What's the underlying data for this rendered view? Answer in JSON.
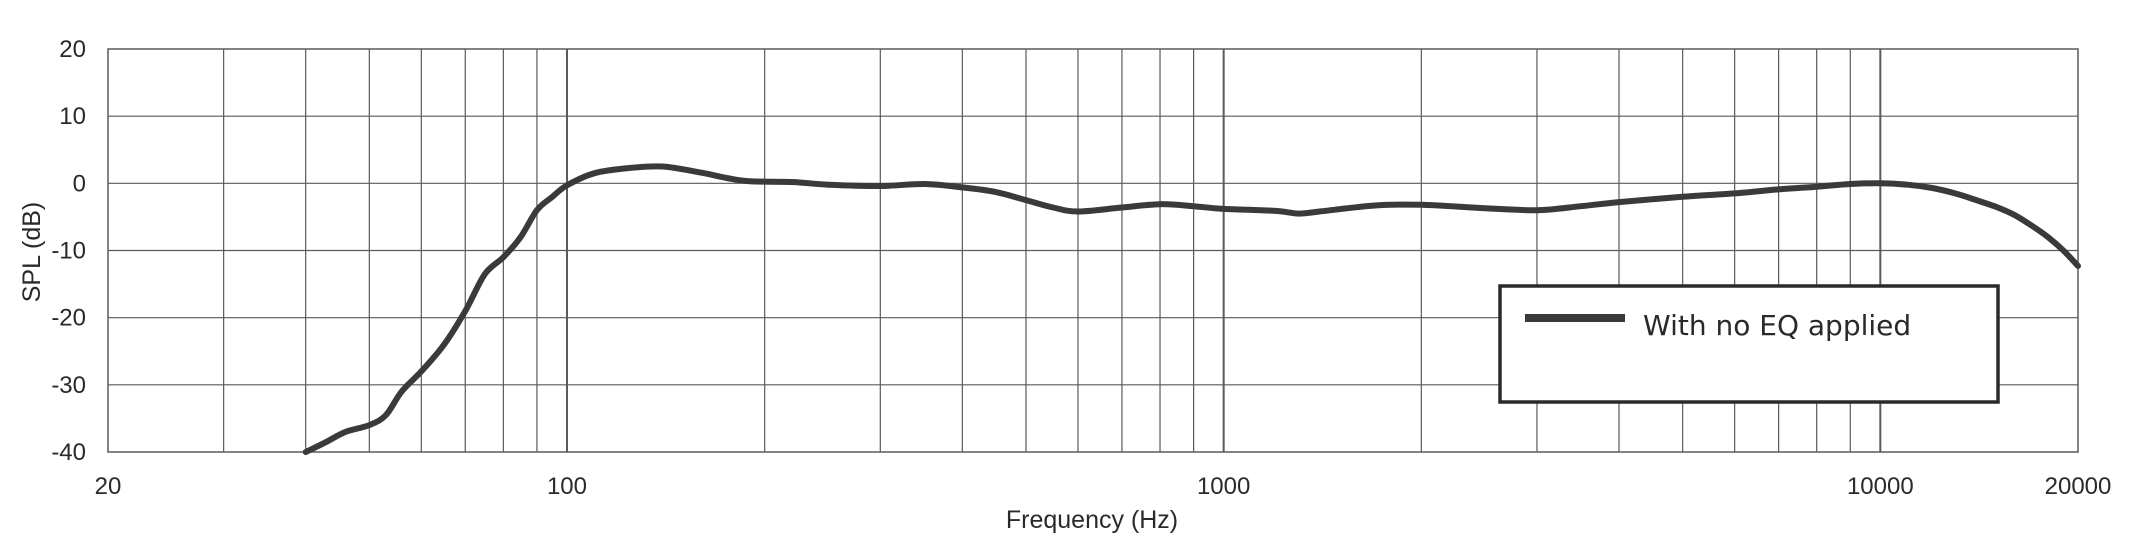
{
  "chart_data": {
    "type": "line",
    "title": "",
    "xlabel": "Frequency (Hz)",
    "ylabel": "SPL (dB)",
    "xscale": "log",
    "xlim": [
      20,
      20000
    ],
    "ylim": [
      -40,
      20
    ],
    "xticks": [
      20,
      100,
      1000,
      10000,
      20000
    ],
    "xtick_labels": [
      "20",
      "100",
      "1000",
      "10000",
      "20000"
    ],
    "yticks": [
      20,
      10,
      0,
      -10,
      -20,
      -30,
      -40
    ],
    "ytick_labels": [
      "20",
      "10",
      "0",
      "-10",
      "-20",
      "-30",
      "-40"
    ],
    "grid": true,
    "legend_position": "bottom-right",
    "line_color": "#3a3a3a",
    "grid_color": "#5a5a5a",
    "series": [
      {
        "name": "With no EQ applied",
        "points": [
          [
            40,
            -40
          ],
          [
            43,
            -38.5
          ],
          [
            46,
            -37
          ],
          [
            50,
            -36
          ],
          [
            53,
            -34.5
          ],
          [
            56,
            -31
          ],
          [
            60,
            -28
          ],
          [
            65,
            -24
          ],
          [
            70,
            -19
          ],
          [
            75,
            -13.5
          ],
          [
            80,
            -11
          ],
          [
            85,
            -8
          ],
          [
            90,
            -4
          ],
          [
            95,
            -2
          ],
          [
            100,
            -0.3
          ],
          [
            110,
            1.5
          ],
          [
            125,
            2.3
          ],
          [
            140,
            2.5
          ],
          [
            160,
            1.6
          ],
          [
            175,
            0.8
          ],
          [
            190,
            0.3
          ],
          [
            220,
            0.2
          ],
          [
            250,
            -0.2
          ],
          [
            300,
            -0.4
          ],
          [
            350,
            -0.1
          ],
          [
            400,
            -0.6
          ],
          [
            450,
            -1.3
          ],
          [
            500,
            -2.5
          ],
          [
            550,
            -3.6
          ],
          [
            600,
            -4.2
          ],
          [
            700,
            -3.6
          ],
          [
            800,
            -3.1
          ],
          [
            900,
            -3.4
          ],
          [
            1000,
            -3.8
          ],
          [
            1200,
            -4.1
          ],
          [
            1300,
            -4.5
          ],
          [
            1400,
            -4.2
          ],
          [
            1700,
            -3.3
          ],
          [
            2000,
            -3.2
          ],
          [
            2500,
            -3.7
          ],
          [
            3000,
            -4.0
          ],
          [
            3500,
            -3.4
          ],
          [
            4000,
            -2.8
          ],
          [
            5000,
            -2.0
          ],
          [
            6000,
            -1.5
          ],
          [
            7000,
            -0.9
          ],
          [
            8000,
            -0.5
          ],
          [
            9000,
            -0.1
          ],
          [
            10000,
            0
          ],
          [
            11000,
            -0.2
          ],
          [
            12000,
            -0.7
          ],
          [
            13000,
            -1.5
          ],
          [
            14000,
            -2.5
          ],
          [
            15000,
            -3.5
          ],
          [
            16000,
            -4.7
          ],
          [
            17000,
            -6.3
          ],
          [
            18000,
            -8.0
          ],
          [
            19000,
            -10.0
          ],
          [
            20000,
            -12.3
          ]
        ]
      }
    ]
  }
}
